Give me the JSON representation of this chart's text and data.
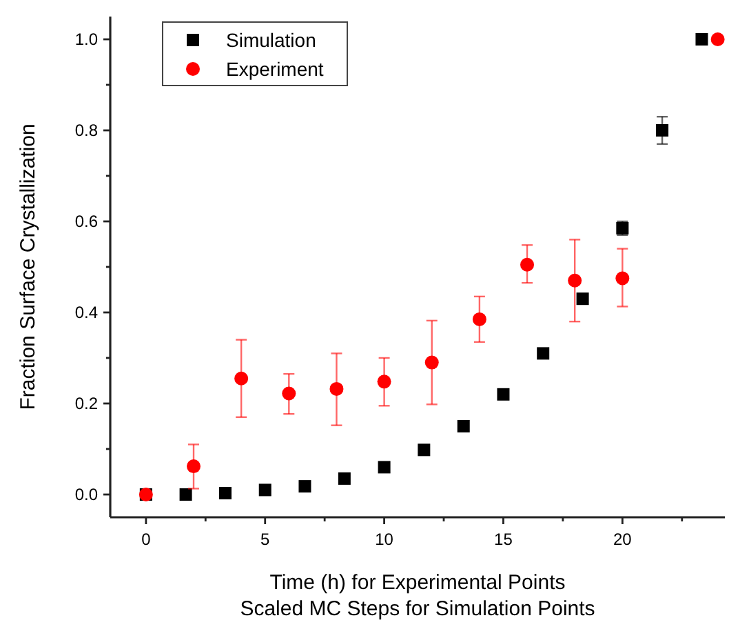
{
  "chart_data": {
    "type": "scatter",
    "xlabel": "Time (h) for Experimental Points\nScaled MC Steps for Simulation Points",
    "ylabel": "Fraction Surface Crystallization",
    "xlim": [
      -1.5,
      24.3
    ],
    "ylim": [
      -0.05,
      1.05
    ],
    "xticks": [
      0,
      {
        "value": 2.5,
        "label": null
      },
      5,
      {
        "value": 7.5,
        "label": null
      },
      10,
      {
        "value": 12.5,
        "label": null
      },
      15,
      {
        "value": 17.5,
        "label": null
      },
      20,
      {
        "value": 22.5,
        "label": null
      }
    ],
    "yticks": [
      {
        "value": 0,
        "label": "0.0"
      },
      {
        "value": 0.1,
        "label": null
      },
      0.2,
      {
        "value": 0.3,
        "label": null
      },
      0.4,
      {
        "value": 0.5,
        "label": null
      },
      0.6,
      {
        "value": 0.7,
        "label": null
      },
      0.8,
      {
        "value": 0.9,
        "label": null
      },
      {
        "value": 1,
        "label": "1.0"
      }
    ],
    "grid": false,
    "legend": "top left",
    "series": [
      {
        "name": "Simulation",
        "color": "#000000",
        "marker": "square",
        "x": [
          0,
          1.67,
          3.33,
          5,
          6.67,
          8.33,
          10,
          11.67,
          13.33,
          15,
          16.67,
          18.33,
          20,
          21.67,
          23.33
        ],
        "values": [
          0,
          0,
          0.003,
          0.01,
          0.018,
          0.035,
          0.06,
          0.098,
          0.15,
          0.22,
          0.31,
          0.43,
          0.585,
          0.8,
          1.0
        ],
        "errors": [
          null,
          null,
          null,
          null,
          null,
          null,
          null,
          null,
          null,
          null,
          null,
          null,
          [
            0.57,
            0.6
          ],
          [
            0.77,
            0.83
          ],
          null
        ]
      },
      {
        "name": "Experiment",
        "color": "#ff0000",
        "marker": "circle",
        "x": [
          0,
          2,
          4,
          6,
          8,
          10,
          12,
          14,
          16,
          18,
          20,
          24
        ],
        "values": [
          0,
          0.062,
          0.255,
          0.222,
          0.232,
          0.248,
          0.29,
          0.385,
          0.505,
          0.47,
          0.475,
          1.0
        ],
        "errors": [
          null,
          [
            0.013,
            0.11
          ],
          [
            0.17,
            0.34
          ],
          [
            0.177,
            0.265
          ],
          [
            0.152,
            0.31
          ],
          [
            0.195,
            0.3
          ],
          [
            0.198,
            0.382
          ],
          [
            0.335,
            0.435
          ],
          [
            0.465,
            0.548
          ],
          [
            0.38,
            0.56
          ],
          [
            0.413,
            0.54
          ],
          null
        ]
      }
    ]
  }
}
